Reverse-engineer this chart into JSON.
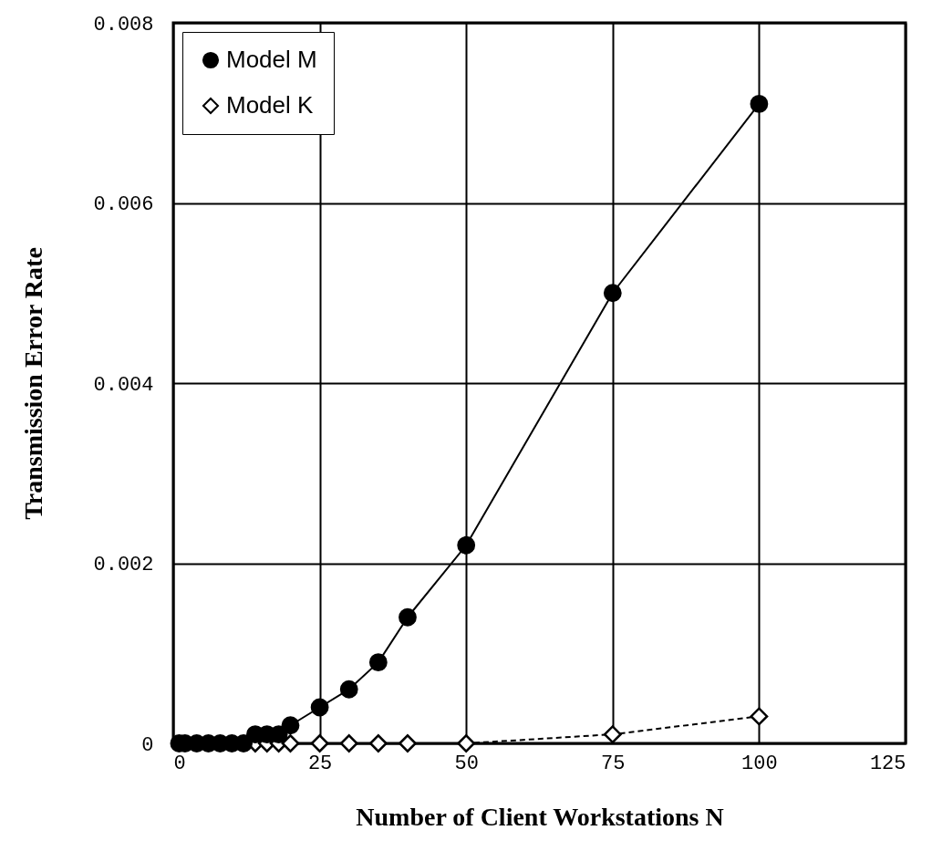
{
  "chart_data": {
    "type": "line",
    "xlabel": "Number of Client Workstations       N",
    "ylabel": "Transmission   Error Rate",
    "x": [
      1,
      2,
      4,
      6,
      8,
      10,
      12,
      14,
      16,
      18,
      20,
      25,
      30,
      35,
      40,
      50,
      75,
      100
    ],
    "series": [
      {
        "name": "Model M",
        "color": "#000000",
        "marker": "circle",
        "line_style": "solid",
        "values": [
          0,
          0,
          0,
          0,
          0,
          0,
          0,
          0.0001,
          0.0001,
          0.0001,
          0.0002,
          0.0004,
          0.0006,
          0.0009,
          0.0014,
          0.0022,
          0.005,
          0.0071
        ]
      },
      {
        "name": "Model K",
        "color": "#000000",
        "marker": "diamond",
        "line_style": "dashed",
        "values": [
          null,
          null,
          null,
          null,
          null,
          null,
          null,
          0,
          0,
          0,
          0,
          0,
          0,
          0,
          0,
          0,
          0.0001,
          0.0003
        ]
      }
    ],
    "xlim": [
      0,
      125
    ],
    "xticks": [
      0,
      25,
      50,
      75,
      100,
      125
    ],
    "ylim": [
      0,
      0.008
    ],
    "yticks": [
      0,
      0.002,
      0.004,
      0.006,
      0.008
    ],
    "grid": true,
    "legend": "top left"
  }
}
